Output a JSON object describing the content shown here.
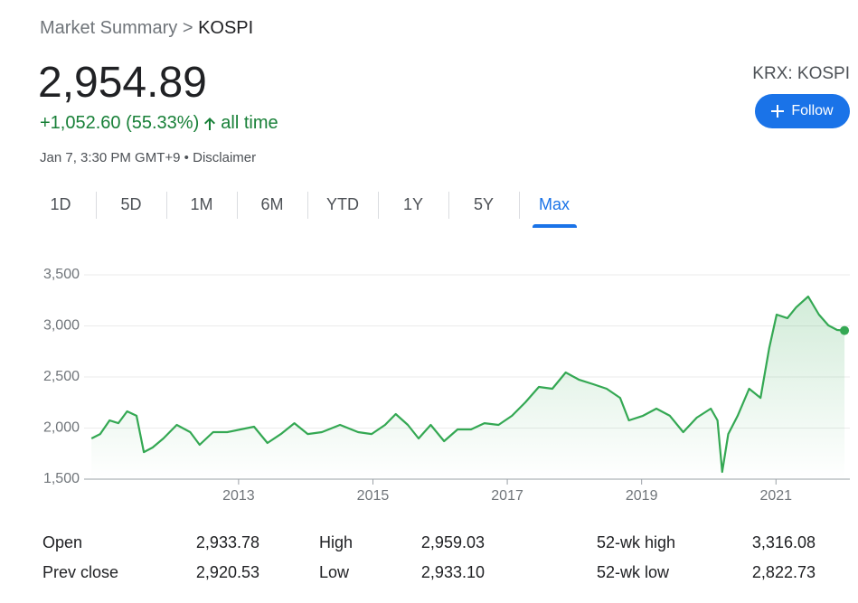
{
  "breadcrumb": {
    "parent": "Market Summary",
    "separator": ">",
    "current": "KOSPI"
  },
  "quote": {
    "price": "2,954.89",
    "change": "+1,052.60 (55.33%)",
    "period": "all time",
    "timestamp": "Jan 7, 3:30 PM GMT+9",
    "separator": "•",
    "disclaimer": "Disclaimer"
  },
  "ticker": "KRX: KOSPI",
  "follow_button": "Follow",
  "tabs": {
    "items": [
      "1D",
      "5D",
      "1M",
      "6M",
      "YTD",
      "1Y",
      "5Y",
      "Max"
    ],
    "active": 7
  },
  "chart_data": {
    "type": "line",
    "color": "#34a853",
    "grid": true,
    "x": [
      2010.81,
      2010.94,
      2011.08,
      2011.21,
      2011.34,
      2011.48,
      2011.59,
      2011.72,
      2011.88,
      2012.08,
      2012.28,
      2012.42,
      2012.62,
      2012.83,
      2013.03,
      2013.23,
      2013.43,
      2013.63,
      2013.83,
      2014.03,
      2014.24,
      2014.51,
      2014.78,
      2014.98,
      2015.18,
      2015.34,
      2015.52,
      2015.68,
      2015.86,
      2016.06,
      2016.26,
      2016.46,
      2016.66,
      2016.87,
      2017.07,
      2017.27,
      2017.47,
      2017.67,
      2017.87,
      2018.07,
      2018.28,
      2018.48,
      2018.68,
      2018.81,
      2019.02,
      2019.22,
      2019.42,
      2019.62,
      2019.82,
      2020.03,
      2020.13,
      2020.2,
      2020.29,
      2020.43,
      2020.6,
      2020.77,
      2020.9,
      2021.01,
      2021.17,
      2021.3,
      2021.48,
      2021.64,
      2021.78,
      2021.91,
      2022.02
    ],
    "values": [
      1898,
      1942,
      2075,
      2048,
      2164,
      2120,
      1765,
      1810,
      1898,
      2031,
      1960,
      1836,
      1960,
      1960,
      1987,
      2013,
      1854,
      1942,
      2048,
      1942,
      1960,
      2031,
      1960,
      1942,
      2031,
      2137,
      2031,
      1898,
      2031,
      1872,
      1987,
      1987,
      2048,
      2031,
      2120,
      2252,
      2403,
      2385,
      2544,
      2473,
      2429,
      2385,
      2296,
      2075,
      2120,
      2190,
      2120,
      1960,
      2102,
      2190,
      2075,
      1571,
      1942,
      2120,
      2385,
      2296,
      2783,
      3111,
      3076,
      3182,
      3288,
      3111,
      3005,
      2960,
      2955
    ],
    "xlim": [
      2010.7,
      2022.1
    ],
    "xticks": [
      2013,
      2015,
      2017,
      2019,
      2021
    ],
    "ylim": [
      1500,
      3500
    ],
    "yticks": [
      {
        "value": 1500,
        "label": "1,500"
      },
      {
        "value": 2000,
        "label": "2,000"
      },
      {
        "value": 2500,
        "label": "2,500"
      },
      {
        "value": 3000,
        "label": "3,000"
      },
      {
        "value": 3500,
        "label": "3,500"
      }
    ]
  },
  "stats": {
    "rows": [
      [
        "Open",
        "2,933.78",
        "High",
        "2,959.03",
        "52-wk high",
        "3,316.08"
      ],
      [
        "Prev close",
        "2,920.53",
        "Low",
        "2,933.10",
        "52-wk low",
        "2,822.73"
      ]
    ]
  }
}
